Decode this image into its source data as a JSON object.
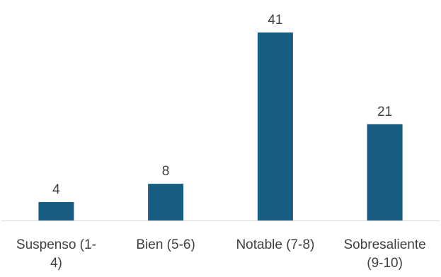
{
  "chart_data": {
    "type": "bar",
    "title": "",
    "xlabel": "",
    "ylabel": "",
    "categories": [
      [
        "Suspenso (1-",
        "4)"
      ],
      [
        "Bien (5-6)"
      ],
      [
        "Notable (7-8)"
      ],
      [
        "Sobresaliente",
        "(9-10)"
      ]
    ],
    "values": [
      4,
      8,
      41,
      21
    ],
    "ylim": [
      0,
      41
    ],
    "grid": false,
    "legend": "none",
    "data_labels": true,
    "colors": {
      "bar": "#175e82",
      "axis": "#d9d9d9",
      "text": "#404040"
    }
  }
}
